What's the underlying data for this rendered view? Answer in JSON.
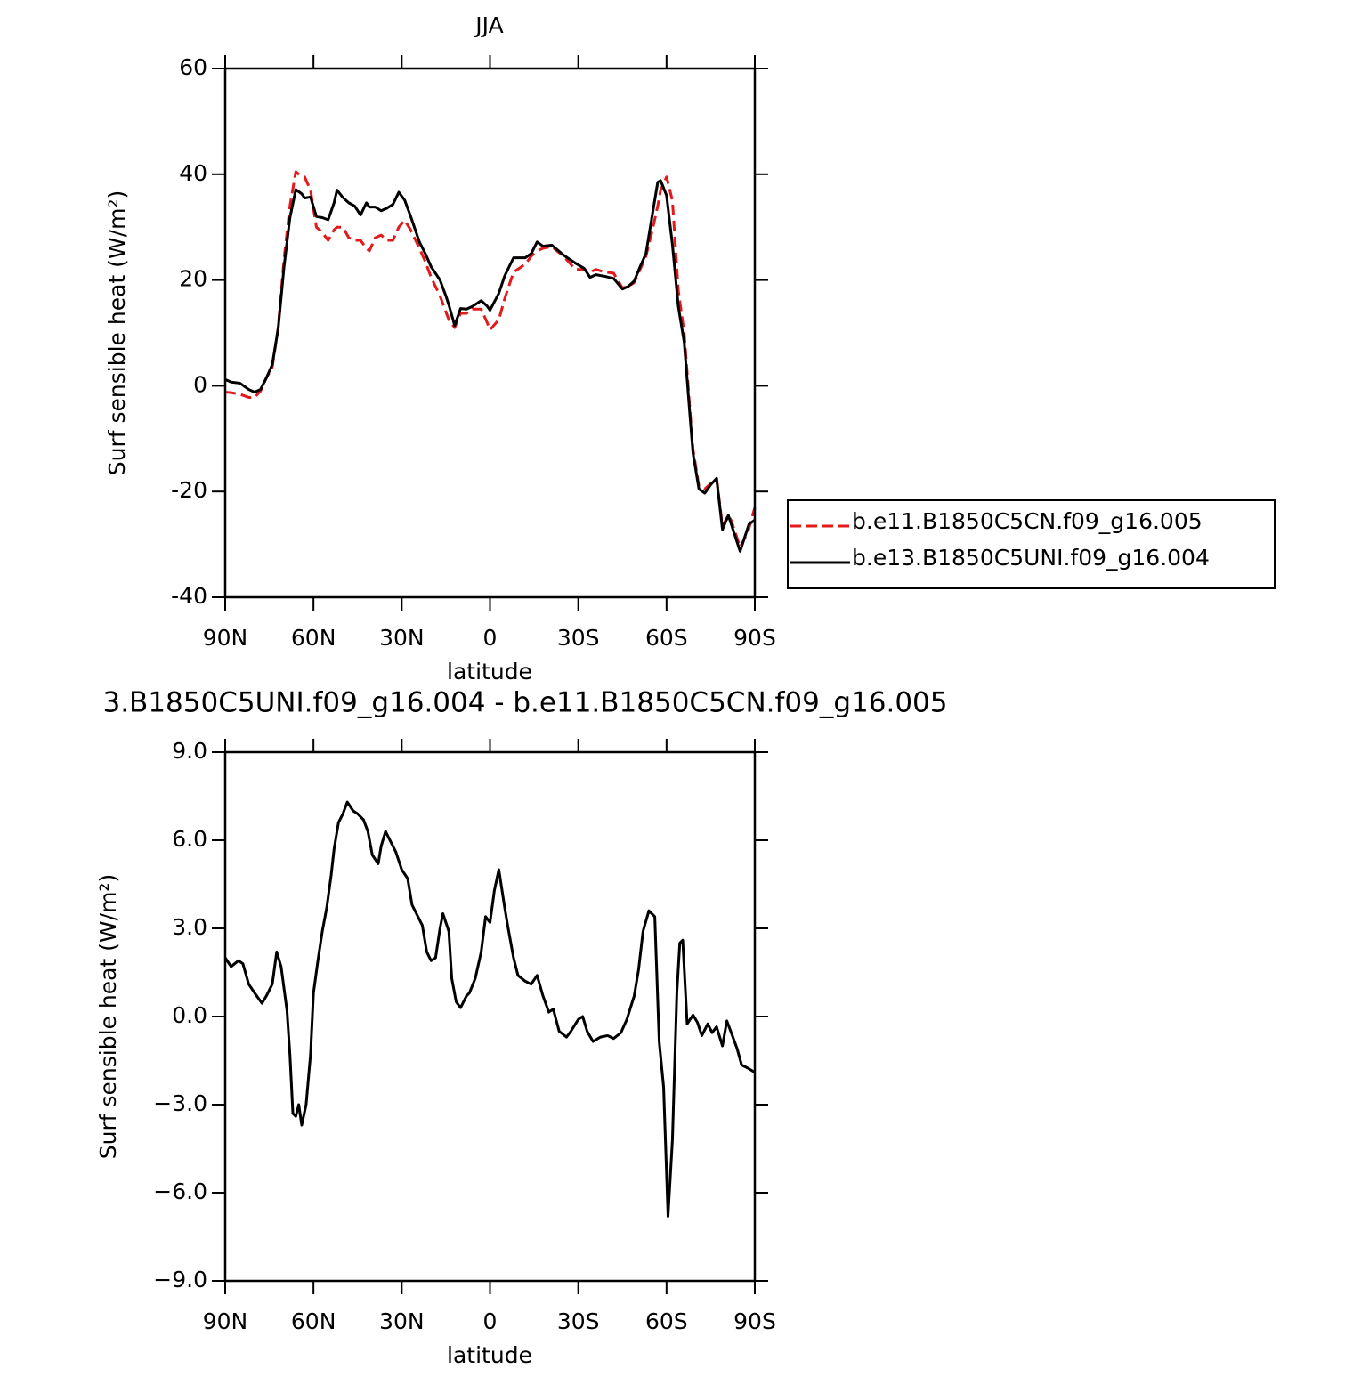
{
  "chart_data": [
    {
      "type": "line",
      "title": "JJA",
      "xlabel": "latitude",
      "ylabel": "Surf sensible heat (W/m²)",
      "x": [
        90,
        88,
        85,
        82,
        80,
        78,
        76,
        74,
        72,
        70,
        68,
        66,
        64,
        63,
        61,
        59,
        57,
        55,
        53,
        52,
        50,
        48,
        46,
        44,
        42,
        41,
        39,
        37,
        35,
        33,
        31,
        29,
        27,
        24,
        22,
        20,
        17,
        15,
        14,
        12,
        10,
        8,
        6,
        3,
        1,
        0,
        -3,
        -5,
        -8,
        -12,
        -14,
        -16,
        -18,
        -21,
        -25,
        -29,
        -32,
        -34,
        -36,
        -39,
        -42,
        -45,
        -47,
        -49,
        -51,
        -53,
        -55,
        -57,
        -58,
        -60,
        -62,
        -64,
        -66,
        -68,
        -69,
        -71,
        -73,
        -75,
        -77,
        -79,
        -81,
        -82,
        -85,
        -86,
        -88,
        -90
      ],
      "series": [
        {
          "name": "b.e11.B1850C5CN.f09_g16.005",
          "color": "#e31a1c",
          "dash": true,
          "values": [
            -1.2,
            -1.3,
            -1.6,
            -2.2,
            -2.2,
            -1,
            1.5,
            3.5,
            11,
            24,
            34,
            40.5,
            39.5,
            39.5,
            37,
            30,
            29,
            27.5,
            29.5,
            30,
            30,
            28,
            27.5,
            27.5,
            26,
            25.5,
            28,
            28.5,
            27.5,
            27.5,
            30,
            31.3,
            29.5,
            26,
            23.5,
            20.5,
            17,
            14,
            12.5,
            11,
            13.7,
            13.7,
            14.5,
            14.5,
            12,
            10.6,
            12.5,
            16.5,
            21.5,
            23,
            24.5,
            25.5,
            26,
            26.3,
            24.5,
            22,
            22,
            21.5,
            22,
            21.5,
            21.3,
            18.5,
            18.8,
            19.5,
            22,
            24.5,
            29,
            34,
            37,
            39.5,
            35,
            18,
            10,
            -5,
            -12,
            -19,
            -19.5,
            -18.5,
            -17.5,
            -26.5,
            -24.5,
            -25.5,
            -30.5,
            -29.5,
            -27,
            -23
          ]
        },
        {
          "name": "b.e13.B1850C5UNI.f09_g16.004",
          "color": "#000000",
          "dash": false,
          "values": [
            1.2,
            0.7,
            0.5,
            -0.7,
            -1.2,
            -0.7,
            1.5,
            4,
            10.8,
            22.5,
            31.8,
            37.1,
            36.3,
            35.5,
            35.7,
            32,
            31.8,
            31.4,
            34.6,
            37,
            35.6,
            34.6,
            34,
            32.3,
            34.6,
            33.8,
            33.8,
            33.1,
            33.6,
            34.3,
            36.6,
            35.1,
            32.1,
            27.2,
            25,
            22.5,
            20,
            17,
            15.3,
            11.4,
            14.6,
            14.5,
            15,
            16.1,
            15.1,
            14.3,
            17.5,
            20.8,
            24.2,
            24.2,
            25,
            27.2,
            26.4,
            26.6,
            24.7,
            23.2,
            22.2,
            20.5,
            21,
            20.7,
            20.3,
            18.3,
            18.8,
            19.8,
            22.5,
            25,
            31.8,
            38.5,
            38.8,
            36,
            26.7,
            15,
            8.2,
            -6,
            -12.8,
            -19.5,
            -20.3,
            -18.7,
            -17.5,
            -27.2,
            -24.5,
            -26.2,
            -31.3,
            -29.6,
            -26.2,
            -25.4
          ]
        }
      ],
      "xlim": [
        90,
        -90
      ],
      "xticks": [
        {
          "value": 90,
          "label": "90N"
        },
        {
          "value": 60,
          "label": "60N"
        },
        {
          "value": 30,
          "label": "30N"
        },
        0,
        {
          "value": -30,
          "label": "30S"
        },
        {
          "value": -60,
          "label": "60S"
        },
        {
          "value": -90,
          "label": "90S"
        }
      ],
      "ylim": [
        -40,
        60
      ],
      "yticks": [
        -40,
        -20,
        0,
        20,
        40,
        60
      ],
      "legend": "outside-right"
    },
    {
      "type": "line",
      "title": "3.B1850C5UNI.f09_g16.004 - b.e11.B1850C5CN.f09_g16.005",
      "xlabel": "latitude",
      "ylabel": "Surf sensible heat (W/m²)",
      "x": [
        90,
        88,
        85.5,
        84,
        82,
        80,
        77.5,
        76,
        74,
        72.5,
        71,
        69,
        68,
        67,
        66,
        65,
        64,
        62.5,
        61,
        60,
        58.5,
        57,
        55.5,
        54,
        53,
        51.5,
        50,
        48.5,
        46.5,
        45,
        43,
        41.5,
        40,
        38,
        37,
        35.5,
        34,
        32,
        30,
        28,
        26.5,
        25,
        23,
        21.5,
        20,
        18.5,
        17,
        16,
        14,
        13,
        11.5,
        10,
        8,
        7,
        5,
        3,
        1.5,
        0,
        -1.5,
        -3,
        -5,
        -6,
        -8,
        -9.5,
        -12,
        -14,
        -16,
        -18,
        -20,
        -21.5,
        -23.5,
        -26,
        -27.5,
        -30,
        -31.5,
        -33,
        -35,
        -37.5,
        -40,
        -42,
        -44.5,
        -46.5,
        -49,
        -50.5,
        -52,
        -54,
        -56,
        -57.5,
        -59,
        -60.5,
        -62,
        -63.5,
        -64.5,
        -65.5,
        -67,
        -69,
        -70.5,
        -72,
        -74,
        -75.5,
        -77,
        -79,
        -80.5,
        -82,
        -84,
        -85.5,
        -87.5,
        -90
      ],
      "values": [
        2.0,
        1.7,
        1.9,
        1.8,
        1.1,
        0.8,
        0.45,
        0.7,
        1.1,
        2.2,
        1.7,
        0.2,
        -1.3,
        -3.3,
        -3.4,
        -3,
        -3.7,
        -3,
        -1.3,
        0.8,
        1.9,
        2.9,
        3.7,
        4.8,
        5.7,
        6.6,
        6.9,
        7.3,
        7.0,
        6.9,
        6.7,
        6.3,
        5.5,
        5.2,
        5.8,
        6.3,
        6.0,
        5.6,
        5.0,
        4.7,
        3.8,
        3.5,
        3.1,
        2.2,
        1.9,
        2.0,
        3.0,
        3.5,
        2.9,
        1.3,
        0.5,
        0.3,
        0.7,
        0.8,
        1.3,
        2.2,
        3.4,
        3.2,
        4.3,
        5.0,
        3.7,
        3.1,
        2.0,
        1.4,
        1.2,
        1.1,
        1.4,
        0.7,
        0.15,
        0.25,
        -0.5,
        -0.7,
        -0.5,
        -0.1,
        0,
        -0.5,
        -0.85,
        -0.7,
        -0.65,
        -0.75,
        -0.55,
        -0.1,
        0.7,
        1.6,
        2.9,
        3.6,
        3.4,
        -0.85,
        -2.4,
        -6.8,
        -4.2,
        0.8,
        2.5,
        2.6,
        -0.25,
        0.05,
        -0.2,
        -0.65,
        -0.25,
        -0.55,
        -0.35,
        -1.0,
        -0.15,
        -0.55,
        -1.1,
        -1.65,
        -1.75,
        -1.9
      ],
      "color": "#000000",
      "xlim": [
        90,
        -90
      ],
      "xticks": [
        {
          "value": 90,
          "label": "90N"
        },
        {
          "value": 60,
          "label": "60N"
        },
        {
          "value": 30,
          "label": "30N"
        },
        0,
        {
          "value": -30,
          "label": "30S"
        },
        {
          "value": -60,
          "label": "60S"
        },
        {
          "value": -90,
          "label": "90S"
        }
      ],
      "ylim": [
        -9,
        9
      ],
      "yticks": [
        {
          "value": -9,
          "label": "−9.0"
        },
        {
          "value": -6,
          "label": "−6.0"
        },
        {
          "value": -3,
          "label": "−3.0"
        },
        {
          "value": 0,
          "label": "0.0"
        },
        {
          "value": 3,
          "label": "3.0"
        },
        {
          "value": 6,
          "label": "6.0"
        },
        {
          "value": 9,
          "label": "9.0"
        }
      ]
    }
  ]
}
